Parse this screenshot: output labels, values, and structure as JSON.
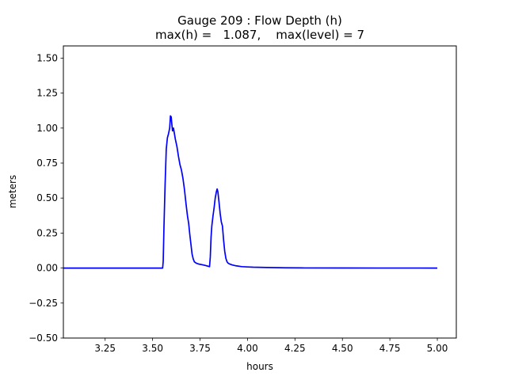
{
  "chart_data": {
    "type": "line",
    "title_line1": "Gauge 209 : Flow Depth (h)",
    "title_line2": "max(h) =   1.087,    max(level) = 7",
    "xlabel": "hours",
    "ylabel": "meters",
    "xlim": [
      3.03,
      5.1
    ],
    "ylim": [
      -0.5,
      1.587
    ],
    "xticks": [
      3.25,
      3.5,
      3.75,
      4.0,
      4.25,
      4.5,
      4.75,
      5.0
    ],
    "xtick_labels": [
      "3.25",
      "3.50",
      "3.75",
      "4.00",
      "4.25",
      "4.50",
      "4.75",
      "5.00"
    ],
    "yticks": [
      -0.5,
      -0.25,
      0.0,
      0.25,
      0.5,
      0.75,
      1.0,
      1.25,
      1.5
    ],
    "ytick_labels": [
      "−0.50",
      "−0.25",
      "0.00",
      "0.25",
      "0.50",
      "0.75",
      "1.00",
      "1.25",
      "1.50"
    ],
    "grid": false,
    "line_color": "#0000ff",
    "series": [
      {
        "x": [
          3.03,
          3.2,
          3.4,
          3.5,
          3.553,
          3.556,
          3.56,
          3.566,
          3.572,
          3.578,
          3.584,
          3.59,
          3.594,
          3.598,
          3.602,
          3.605,
          3.61,
          3.615,
          3.62,
          3.628,
          3.636,
          3.644,
          3.652,
          3.66,
          3.668,
          3.676,
          3.684,
          3.69,
          3.696,
          3.702,
          3.708,
          3.714,
          3.72,
          3.73,
          3.745,
          3.76,
          3.78,
          3.8,
          3.804,
          3.808,
          3.812,
          3.818,
          3.824,
          3.83,
          3.836,
          3.84,
          3.844,
          3.85,
          3.856,
          3.862,
          3.868,
          3.874,
          3.88,
          3.886,
          3.892,
          3.898,
          3.904,
          3.91,
          3.92,
          3.94,
          3.97,
          4.0,
          4.03,
          4.1,
          4.2,
          4.3,
          4.5,
          4.7,
          4.9,
          5.0
        ],
        "y": [
          0.0,
          0.0,
          0.0,
          0.0,
          0.0,
          0.05,
          0.3,
          0.6,
          0.85,
          0.93,
          0.96,
          1.0,
          1.087,
          1.08,
          1.02,
          0.98,
          1.0,
          0.96,
          0.92,
          0.87,
          0.8,
          0.74,
          0.7,
          0.64,
          0.56,
          0.46,
          0.37,
          0.32,
          0.24,
          0.17,
          0.1,
          0.065,
          0.045,
          0.035,
          0.028,
          0.024,
          0.018,
          0.01,
          0.08,
          0.22,
          0.3,
          0.37,
          0.43,
          0.5,
          0.545,
          0.565,
          0.545,
          0.47,
          0.39,
          0.33,
          0.3,
          0.2,
          0.12,
          0.07,
          0.045,
          0.035,
          0.03,
          0.027,
          0.022,
          0.016,
          0.01,
          0.008,
          0.006,
          0.004,
          0.002,
          0.001,
          0.0005,
          0.0002,
          0.0001,
          0.0
        ]
      }
    ]
  }
}
